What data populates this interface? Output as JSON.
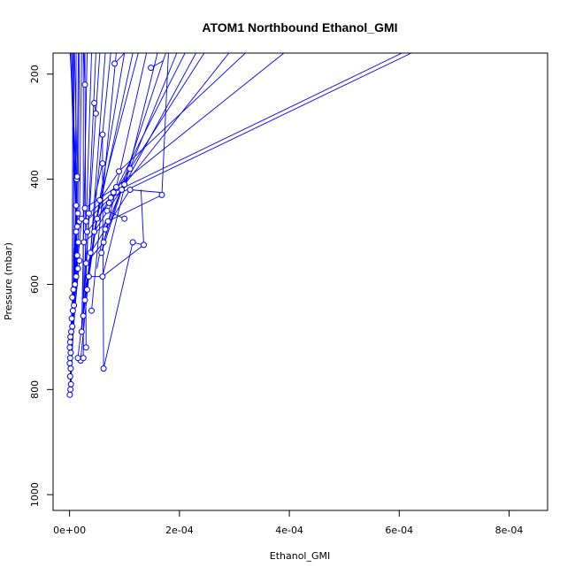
{
  "chart_data": {
    "type": "scatter",
    "title": "ATOM1 Northbound Ethanol_GMI",
    "xlabel": "Ethanol_GMI",
    "ylabel": "Pressure (mbar)",
    "xlim": [
      -3e-05,
      0.00087
    ],
    "ylim": [
      1030,
      160
    ],
    "y_reversed": true,
    "x_ticks": [
      0,
      0.0002,
      0.0004,
      0.0006,
      0.0008
    ],
    "x_tick_labels": [
      "0e+00",
      "2e-04",
      "4e-04",
      "6e-04",
      "8e-04"
    ],
    "y_ticks": [
      200,
      400,
      600,
      800,
      1000
    ],
    "y_tick_labels": [
      "200",
      "400",
      "600",
      "800",
      "1000"
    ],
    "grid": false,
    "legend": "none",
    "colors": {
      "series": "#0000ff",
      "axis": "#000000"
    },
    "series": [
      {
        "points": [
          {
            "x": 5e-07,
            "y": 810
          },
          {
            "x": 1.5e-06,
            "y": 800
          },
          {
            "x": 2.5e-06,
            "y": 790
          },
          {
            "x": 1e-06,
            "y": 775
          },
          {
            "x": 2e-06,
            "y": 760
          },
          {
            "x": 5e-07,
            "y": 750
          },
          {
            "x": 1e-06,
            "y": 740
          },
          {
            "x": 2e-06,
            "y": 730
          },
          {
            "x": 5e-07,
            "y": 720
          },
          {
            "x": 1e-06,
            "y": 710
          },
          {
            "x": 1.5e-06,
            "y": 700
          },
          {
            "x": 3e-06,
            "y": 690
          },
          {
            "x": 5e-06,
            "y": 680
          },
          {
            "x": 4e-06,
            "y": 665
          },
          {
            "x": 6e-06,
            "y": 650
          },
          {
            "x": 8e-06,
            "y": 640
          },
          {
            "x": 5e-06,
            "y": 625
          },
          {
            "x": 7e-06,
            "y": 610
          },
          {
            "x": 1e-05,
            "y": 600
          },
          {
            "x": 1.2e-05,
            "y": 585
          },
          {
            "x": 1.5e-05,
            "y": 570
          },
          {
            "x": 1.8e-05,
            "y": 555
          },
          {
            "x": 1.4e-05,
            "y": 545
          },
          {
            "x": 1.6e-05,
            "y": 520
          },
          {
            "x": 1.2e-05,
            "y": 500
          },
          {
            "x": 1.4e-05,
            "y": 490
          },
          {
            "x": 1.8e-05,
            "y": 480
          },
          {
            "x": 2.2e-05,
            "y": 475
          },
          {
            "x": 1.5e-05,
            "y": 465
          },
          {
            "x": 1.2e-05,
            "y": 450
          },
          {
            "x": 1.3e-05,
            "y": 400
          },
          {
            "x": 1.4e-05,
            "y": 395
          },
          {
            "x": 2e-05,
            "y": 745
          },
          {
            "x": 1.5e-05,
            "y": 740
          },
          {
            "x": 2.2e-05,
            "y": 690
          },
          {
            "x": 2.5e-05,
            "y": 660
          },
          {
            "x": 2.8e-05,
            "y": 630
          },
          {
            "x": 3.2e-05,
            "y": 610
          },
          {
            "x": 3.5e-05,
            "y": 585
          },
          {
            "x": 3e-05,
            "y": 560
          },
          {
            "x": 3.8e-05,
            "y": 540
          },
          {
            "x": 2.6e-05,
            "y": 520
          },
          {
            "x": 3.2e-05,
            "y": 500
          },
          {
            "x": 3e-05,
            "y": 480
          },
          {
            "x": 3.5e-05,
            "y": 465
          },
          {
            "x": 2.8e-05,
            "y": 455
          },
          {
            "x": 4.5e-05,
            "y": 500
          },
          {
            "x": 5e-05,
            "y": 475
          },
          {
            "x": 5.5e-05,
            "y": 440
          },
          {
            "x": 6e-05,
            "y": 585
          },
          {
            "x": 5.8e-05,
            "y": 540
          },
          {
            "x": 6.2e-05,
            "y": 520
          },
          {
            "x": 6.5e-05,
            "y": 495
          },
          {
            "x": 7e-05,
            "y": 480
          },
          {
            "x": 6.8e-05,
            "y": 460
          },
          {
            "x": 7.2e-05,
            "y": 445
          },
          {
            "x": 7.5e-05,
            "y": 435
          },
          {
            "x": 8e-05,
            "y": 425
          },
          {
            "x": 8.5e-05,
            "y": 415
          },
          {
            "x": 9e-05,
            "y": 385
          },
          {
            "x": 9.5e-05,
            "y": 420
          },
          {
            "x": 0.0001,
            "y": 410
          },
          {
            "x": 0.00011,
            "y": 380
          },
          {
            "x": 0.00011,
            "y": 420
          },
          {
            "x": 0.0001,
            "y": 475
          },
          {
            "x": 0.000115,
            "y": 520
          },
          {
            "x": 0.000135,
            "y": 525
          },
          {
            "x": 0.000168,
            "y": 430
          },
          {
            "x": 6.2e-05,
            "y": 760
          },
          {
            "x": 6e-05,
            "y": 370
          },
          {
            "x": 6e-05,
            "y": 315
          },
          {
            "x": 4.8e-05,
            "y": 275
          },
          {
            "x": 4.5e-05,
            "y": 255
          },
          {
            "x": 2.8e-05,
            "y": 220
          },
          {
            "x": 0.000148,
            "y": 188
          },
          {
            "x": 8.2e-05,
            "y": 180
          },
          {
            "x": 4e-05,
            "y": 650
          },
          {
            "x": 3e-05,
            "y": 720
          },
          {
            "x": 2.5e-05,
            "y": 740
          }
        ],
        "segments": [
          [
            5e-07,
            810,
            5e-06,
            680
          ],
          [
            1.5e-06,
            800,
            8e-06,
            640
          ],
          [
            2.5e-06,
            790,
            1e-05,
            600
          ],
          [
            1e-06,
            775,
            1.2e-05,
            585
          ],
          [
            2e-06,
            760,
            1.5e-05,
            570
          ],
          [
            5e-07,
            750,
            1.8e-05,
            555
          ],
          [
            1e-06,
            740,
            1.4e-05,
            545
          ],
          [
            2e-06,
            730,
            1.6e-05,
            520
          ],
          [
            5e-07,
            720,
            1.2e-05,
            500
          ],
          [
            1e-06,
            710,
            1.4e-05,
            490
          ],
          [
            1.5e-06,
            700,
            1.8e-05,
            480
          ],
          [
            3e-06,
            690,
            2.2e-05,
            475
          ],
          [
            5e-06,
            680,
            1.5e-05,
            465
          ],
          [
            4e-06,
            665,
            1.2e-05,
            450
          ],
          [
            6e-06,
            650,
            1.3e-05,
            400
          ],
          [
            8e-06,
            640,
            1.4e-05,
            395
          ],
          [
            5e-06,
            625,
            6e-06,
            160
          ],
          [
            7e-06,
            610,
            8e-06,
            160
          ],
          [
            1e-05,
            600,
            1.2e-05,
            160
          ],
          [
            1.2e-05,
            585,
            1.6e-05,
            160
          ],
          [
            1.4e-05,
            545,
            4e-06,
            160
          ],
          [
            1.2e-05,
            500,
            2e-06,
            160
          ],
          [
            1.3e-05,
            400,
            1e-06,
            160
          ],
          [
            1.4e-05,
            395,
            9e-06,
            160
          ],
          [
            1.5e-05,
            465,
            1.8e-05,
            160
          ],
          [
            1.8e-05,
            480,
            2.2e-05,
            160
          ],
          [
            2e-05,
            745,
            3.5e-05,
            585
          ],
          [
            1.5e-05,
            740,
            3.8e-05,
            540
          ],
          [
            2.2e-05,
            690,
            3e-05,
            560
          ],
          [
            2.5e-05,
            660,
            4.5e-05,
            500
          ],
          [
            2.8e-05,
            630,
            5e-05,
            475
          ],
          [
            3.2e-05,
            610,
            5.5e-05,
            440
          ],
          [
            3.5e-05,
            585,
            6e-05,
            585
          ],
          [
            3e-05,
            560,
            6.2e-05,
            520
          ],
          [
            3.8e-05,
            540,
            6.5e-05,
            495
          ],
          [
            2.6e-05,
            520,
            7e-05,
            480
          ],
          [
            3.2e-05,
            500,
            7.2e-05,
            445
          ],
          [
            3e-05,
            480,
            7.5e-05,
            435
          ],
          [
            3.5e-05,
            465,
            8e-05,
            425
          ],
          [
            2.8e-05,
            455,
            8.5e-05,
            415
          ],
          [
            4.5e-05,
            500,
            0.0001,
            410
          ],
          [
            5e-05,
            475,
            0.00011,
            380
          ],
          [
            5.5e-05,
            440,
            9e-05,
            385
          ],
          [
            5.8e-05,
            540,
            9.5e-05,
            420
          ],
          [
            6.2e-05,
            760,
            0.000115,
            520
          ],
          [
            6e-05,
            585,
            0.000135,
            525
          ],
          [
            7e-05,
            480,
            0.000168,
            430
          ],
          [
            6.5e-05,
            495,
            0.00011,
            420
          ],
          [
            6.8e-05,
            460,
            0.0001,
            475
          ],
          [
            7.5e-05,
            435,
            0.000622,
            160
          ],
          [
            8e-05,
            425,
            0.000605,
            160
          ],
          [
            8.5e-05,
            415,
            0.00039,
            160
          ],
          [
            9e-05,
            385,
            0.00032,
            160
          ],
          [
            0.0001,
            410,
            0.00029,
            160
          ],
          [
            0.00011,
            380,
            0.000245,
            160
          ],
          [
            9.5e-05,
            420,
            0.00023,
            160
          ],
          [
            7.2e-05,
            445,
            0.00021,
            160
          ],
          [
            6.5e-05,
            495,
            0.000195,
            160
          ],
          [
            6.2e-05,
            520,
            0.000175,
            160
          ],
          [
            6e-05,
            585,
            0.00016,
            160
          ],
          [
            5.8e-05,
            540,
            0.00014,
            160
          ],
          [
            5.5e-05,
            440,
            0.000125,
            160
          ],
          [
            5e-05,
            475,
            0.000115,
            160
          ],
          [
            4.5e-05,
            500,
            0.0001,
            160
          ],
          [
            4e-05,
            650,
            8.5e-05,
            160
          ],
          [
            3.8e-05,
            540,
            7.5e-05,
            160
          ],
          [
            3.5e-05,
            585,
            6.5e-05,
            160
          ],
          [
            3e-05,
            560,
            5.5e-05,
            160
          ],
          [
            2.8e-05,
            630,
            4.8e-05,
            160
          ],
          [
            2.5e-05,
            660,
            4e-05,
            160
          ],
          [
            2.2e-05,
            690,
            3.2e-05,
            160
          ],
          [
            3e-05,
            720,
            2.8e-05,
            160
          ],
          [
            2.5e-05,
            740,
            2.5e-05,
            160
          ],
          [
            6.2e-05,
            760,
            6e-05,
            370
          ],
          [
            6e-05,
            370,
            6e-05,
            315
          ],
          [
            4.8e-05,
            275,
            4.5e-05,
            255
          ],
          [
            2.8e-05,
            220,
            2.6e-05,
            160
          ],
          [
            0.000148,
            188,
            0.00017,
            175
          ],
          [
            8.2e-05,
            180,
            0.0001,
            160
          ],
          [
            0.000115,
            520,
            0.000135,
            525
          ],
          [
            0.000135,
            525,
            0.00013,
            420
          ],
          [
            0.000168,
            430,
            0.00018,
            160
          ],
          [
            0.00011,
            420,
            0.000165,
            425
          ],
          [
            6.5e-05,
            480,
            5e-05,
            570
          ],
          [
            6e-05,
            370,
            4.5e-05,
            440
          ]
        ]
      }
    ]
  }
}
